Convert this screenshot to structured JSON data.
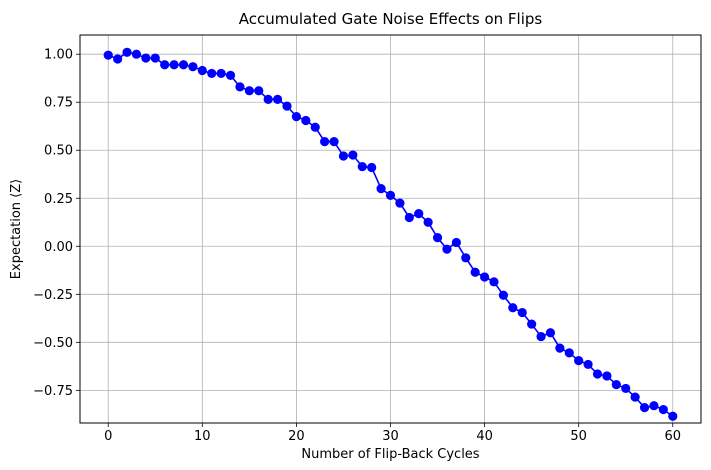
{
  "chart_data": {
    "type": "line",
    "title": "Accumulated Gate Noise Effects on Flips",
    "xlabel": "Number of Flip-Back Cycles",
    "ylabel": "Expectation ⟨Z⟩",
    "xlim": [
      -3,
      63
    ],
    "ylim": [
      -0.92,
      1.1
    ],
    "xticks": [
      0,
      10,
      20,
      30,
      40,
      50,
      60
    ],
    "xtick_labels": [
      "0",
      "10",
      "20",
      "30",
      "40",
      "50",
      "60"
    ],
    "yticks": [
      -0.75,
      -0.5,
      -0.25,
      0.0,
      0.25,
      0.5,
      0.75,
      1.0
    ],
    "ytick_labels": [
      "−0.75",
      "−0.50",
      "−0.25",
      "0.00",
      "0.25",
      "0.50",
      "0.75",
      "1.00"
    ],
    "grid": true,
    "marker": "circle",
    "color": "#0000ff",
    "series": [
      {
        "x": [
          0,
          1,
          2,
          3,
          4,
          5,
          6,
          7,
          8,
          9,
          10,
          11,
          12,
          13,
          14,
          15,
          16,
          17,
          18,
          19,
          20,
          21,
          22,
          23,
          24,
          25,
          26,
          27,
          28,
          29,
          30,
          31,
          32,
          33,
          34,
          35,
          36,
          37,
          38,
          39,
          40,
          41,
          42,
          43,
          44,
          45,
          46,
          47,
          48,
          49,
          50,
          51,
          52,
          53,
          54,
          55,
          56,
          57,
          58,
          59,
          60
        ],
        "y": [
          0.995,
          0.975,
          1.01,
          1.0,
          0.98,
          0.98,
          0.945,
          0.945,
          0.945,
          0.935,
          0.915,
          0.9,
          0.9,
          0.89,
          0.83,
          0.81,
          0.81,
          0.765,
          0.765,
          0.73,
          0.675,
          0.655,
          0.62,
          0.545,
          0.545,
          0.47,
          0.475,
          0.415,
          0.41,
          0.3,
          0.265,
          0.225,
          0.15,
          0.17,
          0.125,
          0.045,
          -0.015,
          0.02,
          -0.06,
          -0.135,
          -0.16,
          -0.185,
          -0.255,
          -0.32,
          -0.345,
          -0.405,
          -0.47,
          -0.45,
          -0.53,
          -0.555,
          -0.595,
          -0.615,
          -0.665,
          -0.675,
          -0.72,
          -0.74,
          -0.785,
          -0.84,
          -0.83,
          -0.85,
          -0.885
        ]
      }
    ]
  }
}
